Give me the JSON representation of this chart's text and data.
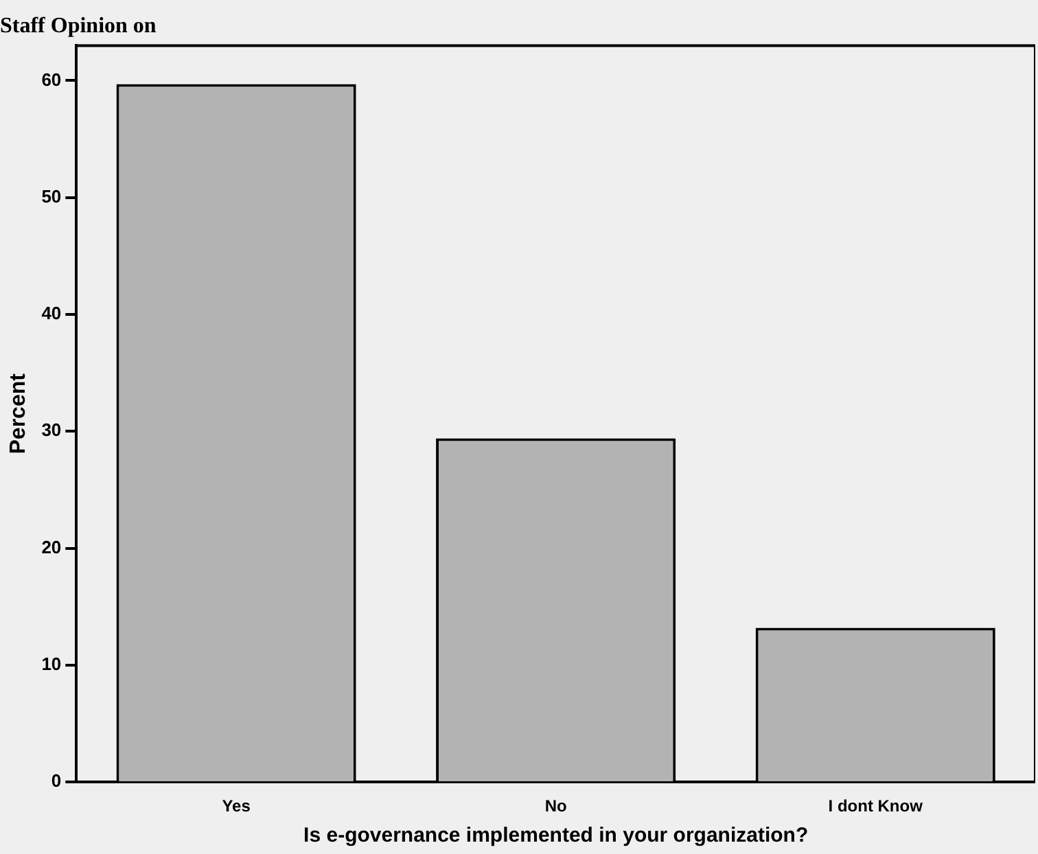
{
  "chart_data": {
    "type": "bar",
    "title": "Staff Opinion on",
    "xlabel": "Is e-governance implemented in your organization?",
    "ylabel": "Percent",
    "categories": [
      "Yes",
      "No",
      "I dont Know"
    ],
    "values": [
      59.7,
      29.4,
      13.2
    ],
    "color": "#b3b3b3",
    "ylim": [
      0,
      63
    ],
    "yticks": [
      0,
      10,
      20,
      30,
      40,
      50,
      60
    ],
    "grid": false,
    "legend": false
  }
}
